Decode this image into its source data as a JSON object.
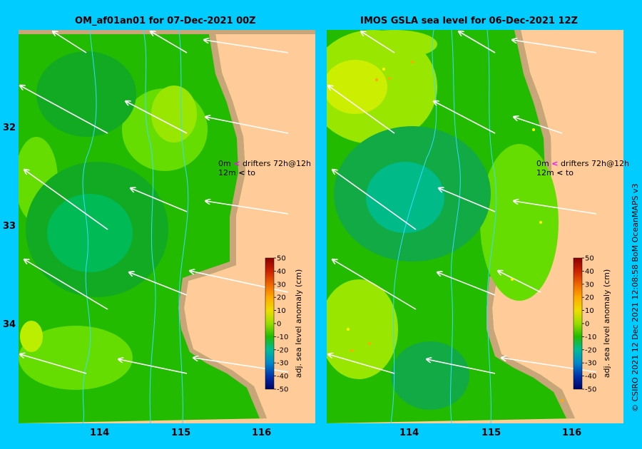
{
  "titles": {
    "left": "OM_af01an01 for 07-Dec-2021 00Z",
    "right": "IMOS GSLA sea level  for 06-Dec-2021 12Z"
  },
  "axis": {
    "lat_ticks": [
      "32",
      "33",
      "34"
    ],
    "lon_ticks": [
      "114",
      "115",
      "116"
    ]
  },
  "legend": {
    "line1_depth": "0m",
    "line1_text": "drifters 72h@12h",
    "line2_depth": "12m",
    "line2_text": "to",
    "pink": "#ff00ff",
    "black": "#000000"
  },
  "colorbar": {
    "label": "adj. sea level anomaly (cm)",
    "ticks": [
      "50",
      "40",
      "30",
      "20",
      "10",
      "0",
      "-10",
      "-20",
      "-30",
      "-40",
      "-50"
    ]
  },
  "credit": "© CSIRO 2021   12 Dec 2021 12:08:58 BoM OceanMAPS v3",
  "colors": {
    "background": "#00ccff",
    "land": "#ffcc99",
    "coast": "#c8a67a",
    "zero_green": "#22bb00",
    "light_green": "#66dd00",
    "yellow_green": "#bbee00",
    "teal": "#00bb66",
    "depth_contour": "#33ddff"
  }
}
